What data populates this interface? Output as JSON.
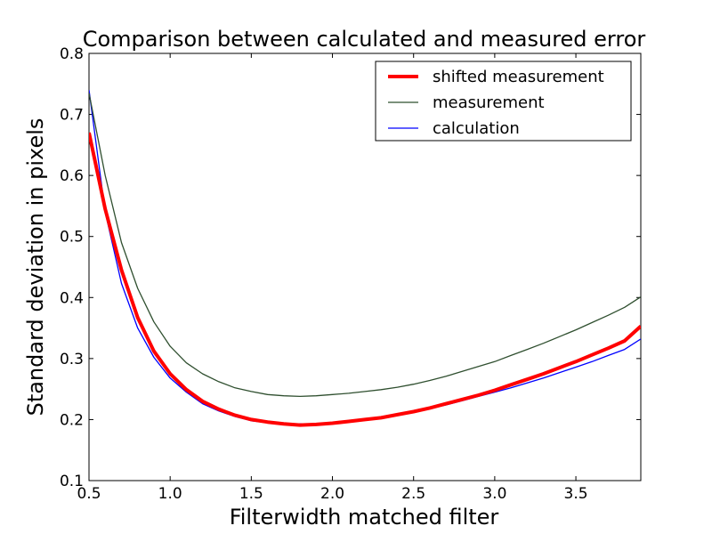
{
  "chart_data": {
    "type": "line",
    "title": "Comparison between calculated and measured error",
    "xlabel": "Filterwidth matched filter",
    "ylabel": "Standard deviation in pixels",
    "xlim": [
      0.5,
      3.9
    ],
    "ylim": [
      0.1,
      0.8
    ],
    "xticks": [
      "0.5",
      "1.0",
      "1.5",
      "2.0",
      "2.5",
      "3.0",
      "3.5"
    ],
    "yticks": [
      "0.1",
      "0.2",
      "0.3",
      "0.4",
      "0.5",
      "0.6",
      "0.7",
      "0.8"
    ],
    "grid": false,
    "legend_position": "top-right",
    "x": [
      0.5,
      0.6,
      0.7,
      0.8,
      0.9,
      1.0,
      1.1,
      1.2,
      1.3,
      1.4,
      1.5,
      1.6,
      1.7,
      1.8,
      1.9,
      2.0,
      2.1,
      2.2,
      2.3,
      2.4,
      2.5,
      2.6,
      2.7,
      2.8,
      2.9,
      3.0,
      3.1,
      3.2,
      3.3,
      3.4,
      3.5,
      3.6,
      3.7,
      3.8,
      3.9
    ],
    "series": [
      {
        "name": "shifted measurement",
        "color": "#ff0000",
        "line_width": "thick",
        "values": [
          0.67,
          0.545,
          0.445,
          0.367,
          0.312,
          0.275,
          0.249,
          0.23,
          0.217,
          0.207,
          0.2,
          0.196,
          0.193,
          0.191,
          0.192,
          0.194,
          0.197,
          0.2,
          0.203,
          0.208,
          0.213,
          0.219,
          0.226,
          0.233,
          0.24,
          0.248,
          0.257,
          0.266,
          0.275,
          0.285,
          0.295,
          0.306,
          0.317,
          0.329,
          0.353
        ]
      },
      {
        "name": "measurement",
        "color": "#2f4f2f",
        "line_width": "thin",
        "values": [
          0.735,
          0.6,
          0.49,
          0.415,
          0.36,
          0.32,
          0.293,
          0.275,
          0.262,
          0.252,
          0.246,
          0.241,
          0.239,
          0.238,
          0.239,
          0.241,
          0.243,
          0.246,
          0.249,
          0.253,
          0.258,
          0.264,
          0.271,
          0.279,
          0.287,
          0.295,
          0.305,
          0.315,
          0.325,
          0.336,
          0.347,
          0.359,
          0.371,
          0.384,
          0.401
        ]
      },
      {
        "name": "calculation",
        "color": "#0000ff",
        "line_width": "thin",
        "values": [
          0.74,
          0.54,
          0.423,
          0.35,
          0.302,
          0.268,
          0.245,
          0.226,
          0.214,
          0.205,
          0.198,
          0.195,
          0.193,
          0.193,
          0.193,
          0.195,
          0.198,
          0.2,
          0.203,
          0.207,
          0.212,
          0.218,
          0.224,
          0.231,
          0.238,
          0.245,
          0.252,
          0.26,
          0.268,
          0.277,
          0.286,
          0.295,
          0.305,
          0.315,
          0.332
        ]
      }
    ]
  }
}
